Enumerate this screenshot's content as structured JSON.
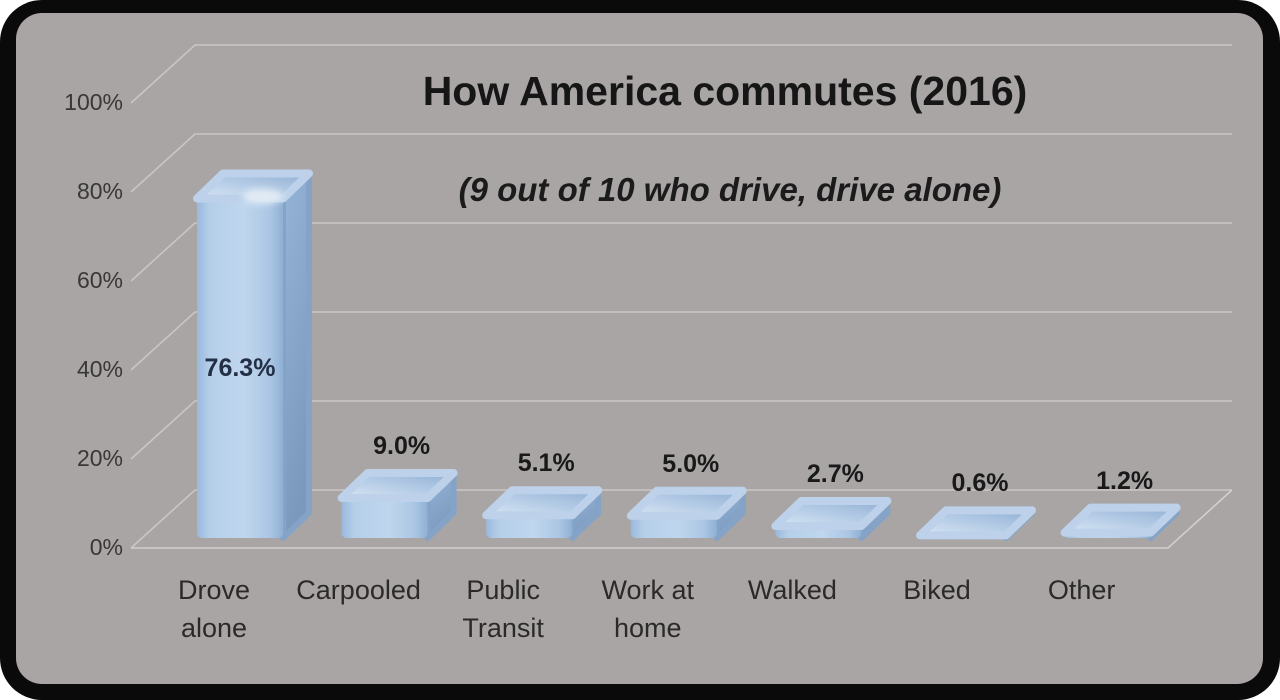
{
  "chart_data": {
    "type": "bar",
    "style": "3d-rounded",
    "title": "How America commutes (2016)",
    "subtitle": "(9 out of 10 who drive, drive alone)",
    "categories": [
      "Drove\nalone",
      "Carpooled",
      "Public\nTransit",
      "Work at\nhome",
      "Walked",
      "Biked",
      "Other"
    ],
    "values": [
      76.3,
      9.0,
      5.1,
      5.0,
      2.7,
      0.6,
      1.2
    ],
    "value_labels": [
      "76.3%",
      "9.0%",
      "5.1%",
      "5.0%",
      "2.7%",
      "0.6%",
      "1.2%"
    ],
    "y_ticks": [
      "0%",
      "20%",
      "40%",
      "60%",
      "80%",
      "100%"
    ],
    "ylim": [
      0,
      100
    ],
    "grid": true,
    "legend": false,
    "colors": {
      "panel": "#a9a5a5",
      "frame": "#0a0a0a",
      "gridline": "#c9c6c6",
      "floor_line": "#d2cfcf",
      "bar_front": "#b6cfe9",
      "bar_front_edge": "#9ab9dc",
      "bar_top_light": "#d8e5f3",
      "bar_top_dark": "#94b2d5",
      "bar_side_light": "#96b4d8",
      "bar_side_dark": "#7b99bd",
      "value_label_outside": "#191919",
      "value_label_inside": "#222f44",
      "tick_label": "#393737",
      "category_label": "#2b2929",
      "title_text": "#161616"
    }
  }
}
